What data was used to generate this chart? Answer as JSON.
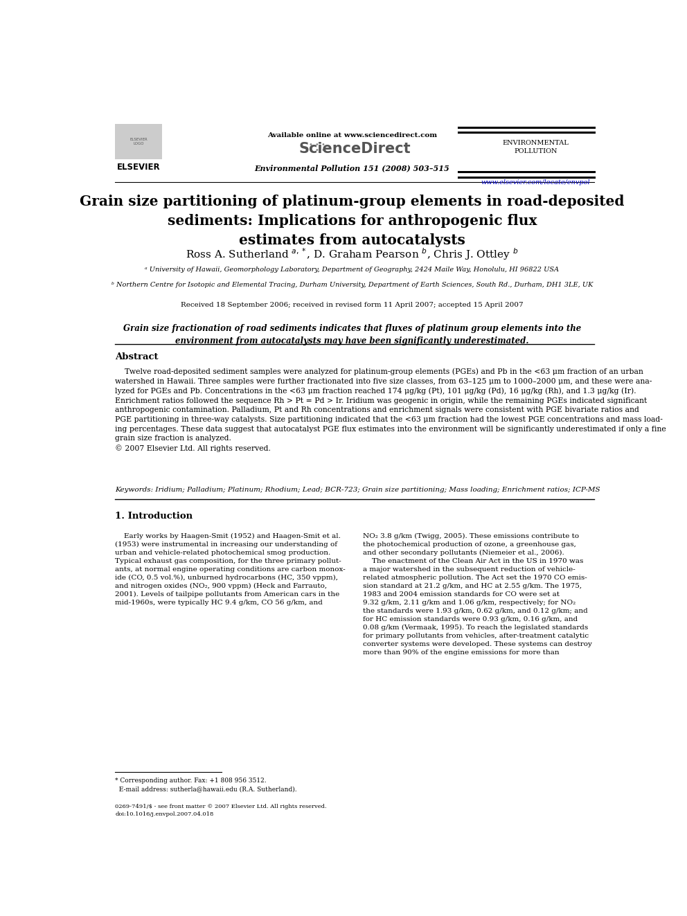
{
  "page_bg": "#ffffff",
  "header": {
    "available_online": "Available online at www.sciencedirect.com",
    "sciencedirect_text": "ScienceDirect",
    "journal_issue": "Environmental Pollution 151 (2008) 503–515",
    "env_pollution_label": "ENVIRONMENTAL\nPOLLUTION",
    "website": "www.elsevier.com/locate/envpol",
    "elsevier_text": "ELSEVIER"
  },
  "title": "Grain size partitioning of platinum-group elements in road-deposited\nsediments: Implications for anthropogenic flux\nestimates from autocatalysts",
  "affil_a": "ᵃ University of Hawaii, Geomorphology Laboratory, Department of Geography, 2424 Maile Way, Honolulu, HI 96822 USA",
  "affil_b": "ᵇ Northern Centre for Isotopic and Elemental Tracing, Durham University, Department of Earth Sciences, South Rd., Durham, DH1 3LE, UK",
  "received": "Received 18 September 2006; received in revised form 11 April 2007; accepted 15 April 2007",
  "highlight": "Grain size fractionation of road sediments indicates that fluxes of platinum group elements into the\nenvironment from autocatalysts may have been significantly underestimated.",
  "abstract_title": "Abstract",
  "keywords": "Keywords: Iridium; Palladium; Platinum; Rhodium; Lead; BCR-723; Grain size partitioning; Mass loading; Enrichment ratios; ICP-MS",
  "section1_title": "1. Introduction",
  "footnote_corr": "* Corresponding author. Fax: +1 808 956 3512.\n  E-mail address: sutherla@hawaii.edu (R.A. Sutherland).",
  "footer_left": "0269-7491/$ - see front matter © 2007 Elsevier Ltd. All rights reserved.\ndoi:10.1016/j.envpol.2007.04.018",
  "colors": {
    "black": "#000000",
    "blue_link": "#0000CC",
    "gray_sd": "#888888"
  }
}
